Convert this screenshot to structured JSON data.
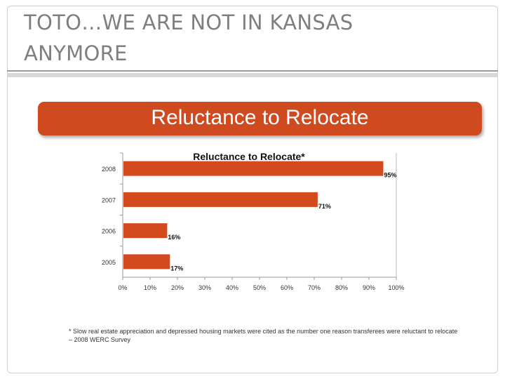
{
  "slide": {
    "title": "TOTO…WE ARE NOT IN KANSAS ANYMORE",
    "banner": "Reluctance to Relocate",
    "footnote": "* Slow real estate appreciation and depressed housing markets were cited as the number one reason transferees were reluctant to relocate – 2008 WERC Survey"
  },
  "colors": {
    "accent": "#cf4a1f",
    "bar": "#d24a1d",
    "title_text": "#7f7f7f"
  },
  "chart_data": {
    "type": "bar",
    "orientation": "horizontal",
    "title": "Reluctance to Relocate*",
    "categories": [
      "2008",
      "2007",
      "2006",
      "2005"
    ],
    "values": [
      95,
      71,
      16,
      17
    ],
    "value_labels": [
      "95%",
      "71%",
      "16%",
      "17%"
    ],
    "xlim": [
      0,
      100
    ],
    "x_ticks": [
      "0%",
      "10%",
      "20%",
      "30%",
      "40%",
      "50%",
      "60%",
      "70%",
      "80%",
      "90%",
      "100%"
    ],
    "grid": false,
    "legend": "none"
  }
}
